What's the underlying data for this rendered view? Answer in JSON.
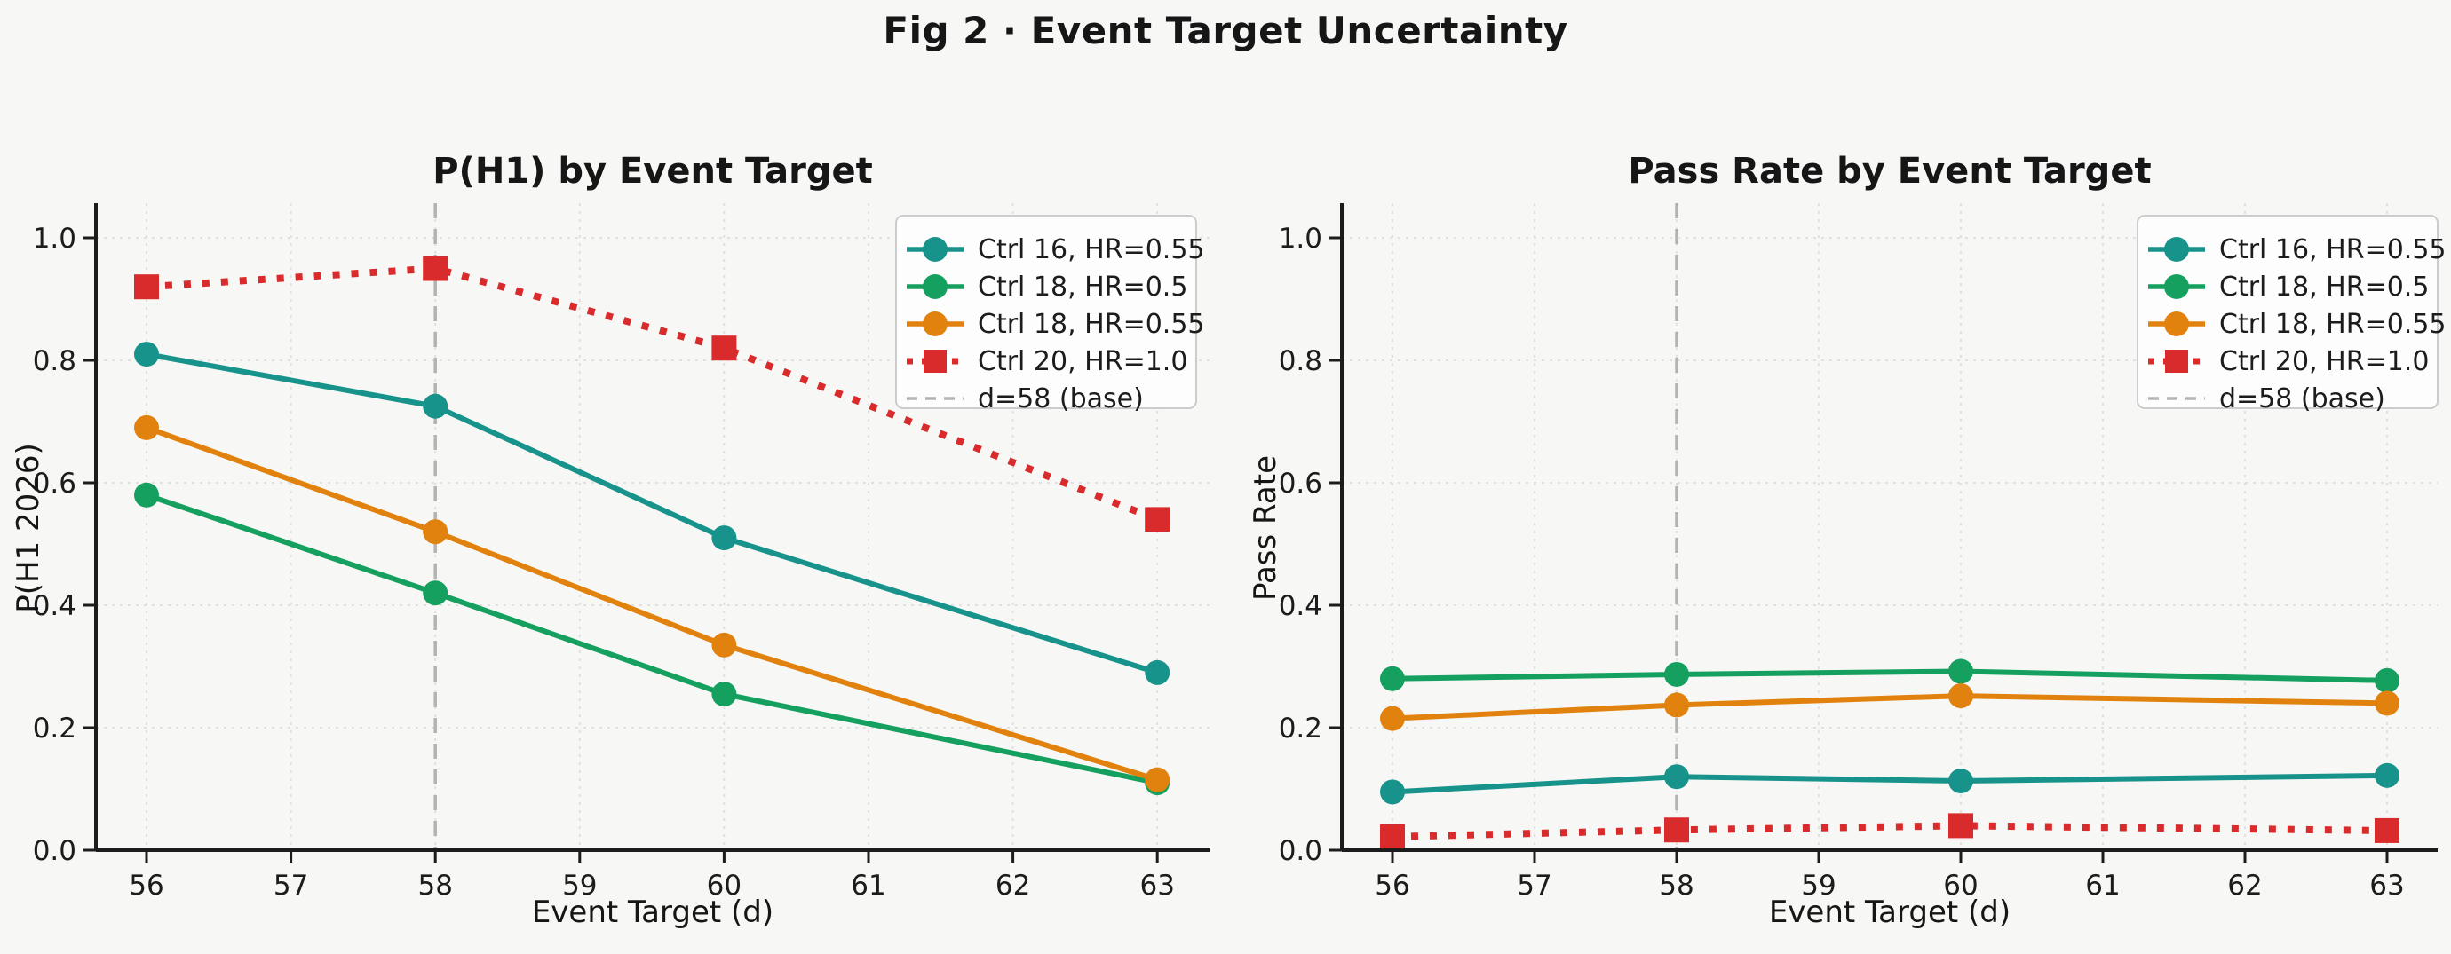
{
  "figure": {
    "title": "Fig 2 · Event Target Uncertainty",
    "background": "#f7f7f5"
  },
  "colors": {
    "teal": "#18938b",
    "green": "#16a05f",
    "orange": "#e2820e",
    "red": "#d92b2b",
    "baseline_gray": "#b3b3b3",
    "grid": "#e0e0de",
    "spine": "#1c1c1c",
    "legend_bg": "#fdfdfd",
    "legend_border": "#cccccc"
  },
  "chart_data": [
    {
      "type": "line",
      "title": "P(H1) by Event Target",
      "xlabel": "Event Target (d)",
      "ylabel": "P(H1 2026)",
      "x": [
        56,
        58,
        60,
        63
      ],
      "xticks": [
        "56",
        "57",
        "58",
        "59",
        "60",
        "61",
        "62",
        "63"
      ],
      "yticks": [
        "0.0",
        "0.2",
        "0.4",
        "0.6",
        "0.8",
        "1.0"
      ],
      "xlim": [
        55.65,
        63.35
      ],
      "ylim": [
        0,
        1.057
      ],
      "grid": true,
      "vline": {
        "x": 58,
        "label": "d=58 (base)"
      },
      "legend_position": "upper right",
      "series": [
        {
          "name": "Ctrl 16, HR=0.55",
          "color_key": "teal",
          "marker": "circle",
          "line": "solid",
          "values": [
            0.81,
            0.725,
            0.51,
            0.29
          ]
        },
        {
          "name": "Ctrl 18, HR=0.5",
          "color_key": "green",
          "marker": "circle",
          "line": "solid",
          "values": [
            0.58,
            0.42,
            0.255,
            0.11
          ]
        },
        {
          "name": "Ctrl 18, HR=0.55",
          "color_key": "orange",
          "marker": "circle",
          "line": "solid",
          "values": [
            0.69,
            0.52,
            0.335,
            0.115
          ]
        },
        {
          "name": "Ctrl 20, HR=1.0",
          "color_key": "red",
          "marker": "square",
          "line": "dotted",
          "values": [
            0.92,
            0.95,
            0.82,
            0.54
          ]
        }
      ],
      "legend": [
        "Ctrl 16, HR=0.55",
        "Ctrl 18, HR=0.5",
        "Ctrl 18, HR=0.55",
        "Ctrl 20, HR=1.0",
        "d=58 (base)"
      ]
    },
    {
      "type": "line",
      "title": "Pass Rate by Event Target",
      "xlabel": "Event Target (d)",
      "ylabel": "Pass Rate",
      "x": [
        56,
        58,
        60,
        63
      ],
      "xticks": [
        "56",
        "57",
        "58",
        "59",
        "60",
        "61",
        "62",
        "63"
      ],
      "yticks": [
        "0.0",
        "0.2",
        "0.4",
        "0.6",
        "0.8",
        "1.0"
      ],
      "xlim": [
        55.65,
        63.35
      ],
      "ylim": [
        0,
        1.057
      ],
      "grid": true,
      "vline": {
        "x": 58,
        "label": "d=58 (base)"
      },
      "legend_position": "upper right",
      "series": [
        {
          "name": "Ctrl 16, HR=0.55",
          "color_key": "teal",
          "marker": "circle",
          "line": "solid",
          "values": [
            0.095,
            0.12,
            0.113,
            0.122
          ]
        },
        {
          "name": "Ctrl 18, HR=0.5",
          "color_key": "green",
          "marker": "circle",
          "line": "solid",
          "values": [
            0.28,
            0.287,
            0.292,
            0.277
          ]
        },
        {
          "name": "Ctrl 18, HR=0.55",
          "color_key": "orange",
          "marker": "circle",
          "line": "solid",
          "values": [
            0.215,
            0.237,
            0.252,
            0.24
          ]
        },
        {
          "name": "Ctrl 20, HR=1.0",
          "color_key": "red",
          "marker": "square",
          "line": "dotted",
          "values": [
            0.022,
            0.033,
            0.04,
            0.032
          ]
        }
      ],
      "legend": [
        "Ctrl 16, HR=0.55",
        "Ctrl 18, HR=0.5",
        "Ctrl 18, HR=0.55",
        "Ctrl 20, HR=1.0",
        "d=58 (base)"
      ]
    }
  ]
}
